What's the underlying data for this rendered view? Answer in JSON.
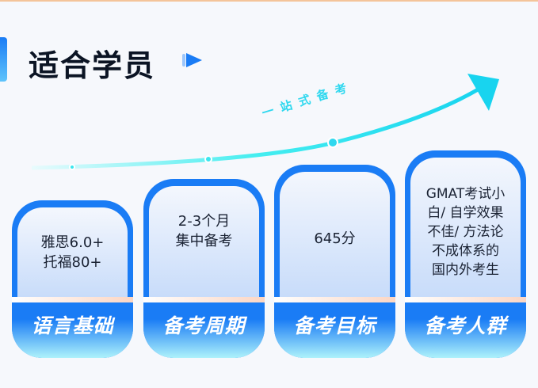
{
  "title": "适合学员",
  "slogan": "一站式备考",
  "colors": {
    "accent": "#1a7cf5",
    "arrow": "#2fd8ef"
  },
  "cards": [
    {
      "lines": [
        "雅思6.0+",
        "托福80+"
      ],
      "label": "语言基础"
    },
    {
      "lines": [
        "2-3个月",
        "集中备考"
      ],
      "label": "备考周期"
    },
    {
      "lines": [
        "645分"
      ],
      "label": "备考目标"
    },
    {
      "lines": [
        "GMAT考试小",
        "白/ 自学效果",
        "不佳/ 方法论",
        "不成体系的",
        "国内外考生"
      ],
      "label": "备考人群"
    }
  ]
}
